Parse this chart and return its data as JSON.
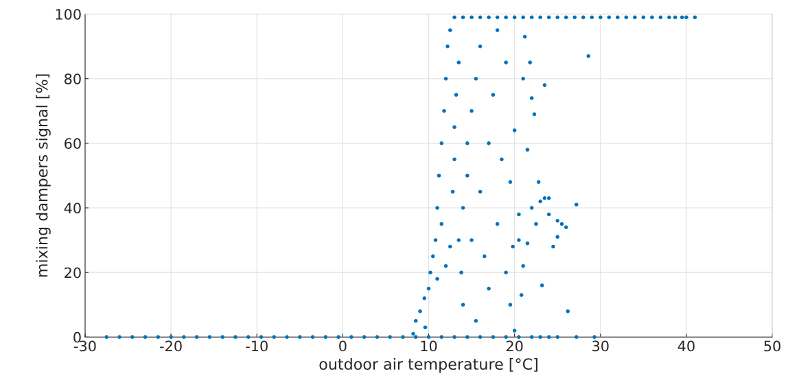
{
  "chart_data": {
    "type": "scatter",
    "xlabel": "outdoor air temperature [°C]",
    "ylabel": "mixing dampers signal [%]",
    "xlim": [
      -30,
      50
    ],
    "xticks": [
      -30,
      -20,
      -10,
      0,
      10,
      20,
      30,
      40,
      50
    ],
    "ylim": [
      0,
      100
    ],
    "yticks": [
      0,
      20,
      40,
      60,
      80,
      100
    ],
    "grid": true,
    "marker": "circle",
    "series": [
      {
        "color": "#0072bd",
        "x": [
          -27.5,
          -26,
          -24.5,
          -23,
          -21.5,
          -20,
          -18.5,
          -17,
          -15.5,
          -14,
          -12.5,
          -11,
          -9.5,
          -8,
          -6.5,
          -5,
          -3.5,
          -2,
          -0.5,
          1,
          2.5,
          4,
          5.5,
          7,
          8.5,
          10,
          11.5,
          13,
          14.5,
          16,
          17.5,
          19,
          20.5,
          22,
          23,
          24,
          25,
          27.2,
          29.3,
          13,
          14,
          15,
          16,
          17,
          18,
          19,
          20,
          21,
          22,
          23,
          24,
          25,
          26,
          27,
          28,
          29,
          30,
          31,
          32,
          33,
          34,
          35,
          36,
          37,
          38,
          38.7,
          39.5,
          40,
          41,
          8.2,
          8.5,
          9,
          9.5,
          9.6,
          10,
          10.2,
          10.5,
          10.8,
          11,
          11,
          11.2,
          11.5,
          11.5,
          11.8,
          12,
          12,
          12.2,
          12.5,
          12.5,
          12.8,
          13,
          13,
          13.2,
          13.5,
          13.5,
          13.8,
          14,
          14,
          14.5,
          14.5,
          15,
          15,
          15.5,
          15.5,
          16,
          16,
          16.5,
          17,
          17,
          17.5,
          18,
          18,
          18.5,
          19,
          19,
          19.5,
          19.5,
          20,
          20,
          20.5,
          21,
          21,
          21.2,
          21.5,
          21.8,
          22,
          22,
          22.3,
          22.5,
          22.8,
          23,
          23.2,
          23.5,
          23.5,
          24,
          24,
          24.5,
          25,
          25,
          25.5,
          26,
          26.2,
          27.2,
          28.6,
          20.8,
          19.8,
          20.5,
          21.5
        ],
        "values": [
          0,
          0,
          0,
          0,
          0,
          0,
          0,
          0,
          0,
          0,
          0,
          0,
          0,
          0,
          0,
          0,
          0,
          0,
          0,
          0,
          0,
          0,
          0,
          0,
          0,
          0,
          0,
          0,
          0,
          0,
          0,
          0,
          0,
          0,
          0,
          0,
          0,
          0,
          0,
          99,
          99,
          99,
          99,
          99,
          99,
          99,
          99,
          99,
          99,
          99,
          99,
          99,
          99,
          99,
          99,
          99,
          99,
          99,
          99,
          99,
          99,
          99,
          99,
          99,
          99,
          99,
          99,
          99,
          99,
          1,
          5,
          8,
          12,
          3,
          15,
          20,
          25,
          30,
          18,
          40,
          50,
          35,
          60,
          70,
          80,
          22,
          90,
          95,
          28,
          45,
          55,
          65,
          75,
          85,
          30,
          20,
          40,
          10,
          50,
          60,
          70,
          30,
          80,
          5,
          90,
          45,
          25,
          60,
          15,
          75,
          35,
          95,
          55,
          20,
          85,
          10,
          48,
          64,
          2,
          30,
          80,
          22,
          93,
          58,
          85,
          74,
          40,
          69,
          35,
          48,
          42,
          16,
          43,
          78,
          43,
          38,
          28,
          36,
          31,
          35,
          34,
          8,
          41,
          87,
          13,
          28,
          38,
          29
        ]
      }
    ]
  }
}
